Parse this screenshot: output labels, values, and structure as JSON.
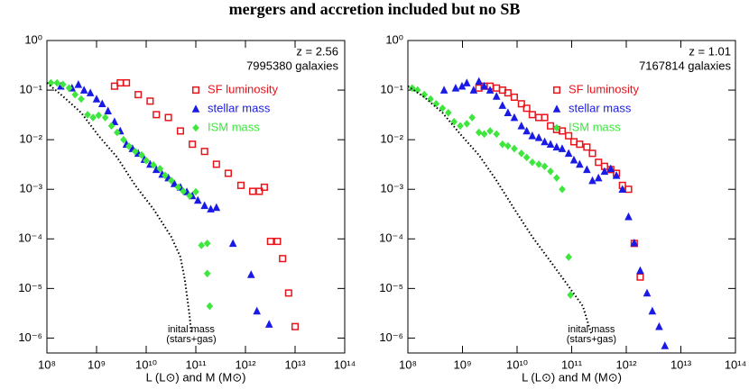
{
  "title": "mergers and accretion included but no SB",
  "chart_data": [
    {
      "type": "scatter",
      "log_x": true,
      "log_y": true,
      "annotations": [
        "z = 2.56",
        "7995380 galaxies"
      ],
      "curve_label": [
        "inital mass",
        "(stars+gas)"
      ],
      "x_label": "L (L⊙) and M (M⊙)",
      "xlim": [
        100000000.0,
        100000000000000.0
      ],
      "ylim": [
        5e-07,
        1
      ],
      "xticks": [
        {
          "value": 100000000.0,
          "label": "10⁸"
        },
        {
          "value": 1000000000.0,
          "label": "10⁹"
        },
        {
          "value": 10000000000.0,
          "label": "10¹⁰"
        },
        {
          "value": 100000000000.0,
          "label": "10¹¹"
        },
        {
          "value": 1000000000000.0,
          "label": "10¹²"
        },
        {
          "value": 10000000000000.0,
          "label": "10¹³"
        },
        {
          "value": 100000000000000.0,
          "label": "10¹⁴"
        }
      ],
      "yticks": [
        {
          "value": 1e-06,
          "label": "10⁻⁶"
        },
        {
          "value": 1e-05,
          "label": "10⁻⁵"
        },
        {
          "value": 0.0001,
          "label": "10⁻⁴"
        },
        {
          "value": 0.001,
          "label": "10⁻³"
        },
        {
          "value": 0.01,
          "label": "10⁻²"
        },
        {
          "value": 0.1,
          "label": "10⁻¹"
        },
        {
          "value": 1,
          "label": "10⁰"
        }
      ],
      "series": [
        {
          "name": "SF luminosity",
          "color": "#e8141b",
          "marker": "square",
          "x": [
            2300000000.0,
            3000000000.0,
            4000000000.0,
            6900000000.0,
            12000000000.0,
            16000000000.0,
            28000000000.0,
            49000000000.0,
            85000000000.0,
            150000000000.0,
            260000000000.0,
            450000000000.0,
            810000000000.0,
            1400000000000.0,
            1900000000000.0,
            2400000000000.0,
            3200000000000.0,
            4400000000000.0,
            5600000000000.0,
            7400000000000.0,
            10000000000000.0
          ],
          "values": [
            0.12,
            0.14,
            0.14,
            0.081,
            0.06,
            0.032,
            0.028,
            0.015,
            0.0081,
            0.0058,
            0.0032,
            0.0021,
            0.0012,
            0.00091,
            0.00091,
            0.0011,
            8.9e-05,
            8.9e-05,
            4e-05,
            8.1e-06,
            1.7e-06
          ]
        },
        {
          "name": "stellar mass",
          "color": "#1a1ae6",
          "marker": "triangle",
          "x": [
            190000000.0,
            320000000.0,
            430000000.0,
            560000000.0,
            750000000.0,
            1000000000.0,
            1300000000.0,
            1700000000.0,
            2300000000.0,
            3000000000.0,
            4000000000.0,
            5300000000.0,
            6900000000.0,
            9200000000.0,
            12000000000.0,
            16000000000.0,
            21000000000.0,
            28000000000.0,
            37000000000.0,
            49000000000.0,
            66000000000.0,
            85000000000.0,
            110000000000.0,
            150000000000.0,
            200000000000.0,
            260000000000.0,
            560000000000.0,
            1300000000000.0,
            1700000000000.0,
            3000000000000.0
          ],
          "values": [
            0.12,
            0.11,
            0.13,
            0.1,
            0.088,
            0.066,
            0.053,
            0.038,
            0.023,
            0.015,
            0.0081,
            0.0066,
            0.0053,
            0.004,
            0.0032,
            0.0025,
            0.002,
            0.0017,
            0.0013,
            0.0011,
            0.00089,
            0.00074,
            0.0006,
            0.00047,
            0.0004,
            0.00043,
            8.1e-05,
            1.9e-05,
            3.5e-06,
            1.9e-06
          ]
        },
        {
          "name": "ISM mass",
          "color": "#3ee63e",
          "marker": "diamond",
          "x": [
            120000000.0,
            160000000.0,
            210000000.0,
            280000000.0,
            370000000.0,
            490000000.0,
            660000000.0,
            850000000.0,
            1100000000.0,
            1500000000.0,
            2000000000.0,
            2600000000.0,
            3500000000.0,
            4500000000.0,
            6000000000.0,
            8100000000.0,
            10000000000.0,
            14000000000.0,
            19000000000.0,
            24000000000.0,
            32000000000.0,
            44000000000.0,
            56000000000.0,
            75000000000.0,
            100000000000.0,
            130000000000.0,
            170000000000.0,
            170000000000.0,
            190000000000.0
          ],
          "values": [
            0.14,
            0.14,
            0.13,
            0.11,
            0.081,
            0.066,
            0.032,
            0.028,
            0.031,
            0.028,
            0.019,
            0.014,
            0.01,
            0.0074,
            0.0058,
            0.0049,
            0.0038,
            0.0031,
            0.0026,
            0.0019,
            0.0015,
            0.0011,
            0.00091,
            0.00074,
            0.00089,
            7.4e-05,
            8.1e-05,
            2e-05,
            4.4e-06
          ]
        },
        {
          "color": "#000000",
          "style": "dotted",
          "x": [
            100000000.0,
            210000000.0,
            490000000.0,
            1100000000.0,
            2600000000.0,
            6000000000.0,
            14000000000.0,
            32000000000.0,
            49000000000.0,
            60000000000.0,
            75000000000.0,
            81000000000.0
          ],
          "values": [
            0.14,
            0.075,
            0.035,
            0.012,
            0.0044,
            0.0012,
            0.0004,
            0.00011,
            4.3e-05,
            1.5e-05,
            2.8e-06,
            1.2e-06
          ]
        }
      ]
    },
    {
      "type": "scatter",
      "log_x": true,
      "log_y": true,
      "annotations": [
        "z = 1.01",
        "7167814 galaxies"
      ],
      "curve_label": [
        "inital mass",
        "(stars+gas)"
      ],
      "x_label": "L (L⊙) and M (M⊙)",
      "xlim": [
        100000000.0,
        100000000000000.0
      ],
      "ylim": [
        5e-07,
        1
      ],
      "xticks": [
        {
          "value": 100000000.0,
          "label": "10⁸"
        },
        {
          "value": 1000000000.0,
          "label": "10⁹"
        },
        {
          "value": 10000000000.0,
          "label": "10¹⁰"
        },
        {
          "value": 100000000000.0,
          "label": "10¹¹"
        },
        {
          "value": 1000000000000.0,
          "label": "10¹²"
        },
        {
          "value": 10000000000000.0,
          "label": "10¹³"
        },
        {
          "value": 100000000000000.0,
          "label": "10¹⁴"
        }
      ],
      "yticks": [
        {
          "value": 1e-06,
          "label": "10⁻⁶"
        },
        {
          "value": 1e-05,
          "label": "10⁻⁵"
        },
        {
          "value": 0.0001,
          "label": "10⁻⁴"
        },
        {
          "value": 0.001,
          "label": "10⁻³"
        },
        {
          "value": 0.01,
          "label": "10⁻²"
        },
        {
          "value": 0.1,
          "label": "10⁻¹"
        },
        {
          "value": 1,
          "label": "10⁰"
        }
      ],
      "series": [
        {
          "name": "SF luminosity",
          "color": "#e8141b",
          "marker": "square",
          "x": [
            2000000000.0,
            2500000000.0,
            3200000000.0,
            4200000000.0,
            5400000000.0,
            6800000000.0,
            8900000000.0,
            12000000000.0,
            15000000000.0,
            19000000000.0,
            25000000000.0,
            32000000000.0,
            41000000000.0,
            53000000000.0,
            67000000000.0,
            88000000000.0,
            110000000000.0,
            140000000000.0,
            190000000000.0,
            240000000000.0,
            310000000000.0,
            400000000000.0,
            520000000000.0,
            660000000000.0,
            850000000000.0,
            1100000000000.0,
            1400000000000.0,
            1800000000000.0
          ],
          "values": [
            0.11,
            0.12,
            0.12,
            0.11,
            0.1,
            0.088,
            0.072,
            0.053,
            0.043,
            0.032,
            0.028,
            0.028,
            0.019,
            0.016,
            0.015,
            0.012,
            0.0091,
            0.0081,
            0.0071,
            0.0053,
            0.0035,
            0.0029,
            0.0025,
            0.0021,
            0.0012,
            0.001,
            8.1e-05,
            1.7e-05
          ]
        },
        {
          "name": "stellar mass",
          "color": "#1a1ae6",
          "marker": "triangle",
          "x": [
            460000000.0,
            750000000.0,
            980000000.0,
            1200000000.0,
            1600000000.0,
            2000000000.0,
            2500000000.0,
            3200000000.0,
            4200000000.0,
            5400000000.0,
            6800000000.0,
            8900000000.0,
            12000000000.0,
            15000000000.0,
            19000000000.0,
            25000000000.0,
            32000000000.0,
            41000000000.0,
            53000000000.0,
            67000000000.0,
            88000000000.0,
            110000000000.0,
            140000000000.0,
            190000000000.0,
            240000000000.0,
            310000000000.0,
            400000000000.0,
            520000000000.0,
            660000000000.0,
            850000000000.0,
            1100000000000.0,
            1400000000000.0,
            1800000000000.0,
            2400000000000.0,
            3000000000000.0,
            4000000000000.0,
            5100000000000.0
          ],
          "values": [
            0.1,
            0.11,
            0.12,
            0.14,
            0.1,
            0.15,
            0.12,
            0.1,
            0.075,
            0.049,
            0.035,
            0.028,
            0.019,
            0.015,
            0.012,
            0.011,
            0.0091,
            0.0081,
            0.0071,
            0.0066,
            0.0053,
            0.0039,
            0.0032,
            0.0025,
            0.0015,
            0.0017,
            0.0023,
            0.0026,
            0.0019,
            0.001,
            0.00028,
            8.3e-05,
            2.3e-05,
            8.1e-06,
            3.5e-06,
            1.7e-06,
            7e-07
          ]
        },
        {
          "name": "ISM mass",
          "color": "#3ee63e",
          "marker": "diamond",
          "x": [
            120000000.0,
            150000000.0,
            200000000.0,
            260000000.0,
            330000000.0,
            430000000.0,
            550000000.0,
            700000000.0,
            910000000.0,
            1200000000.0,
            1500000000.0,
            2000000000.0,
            2500000000.0,
            3200000000.0,
            4200000000.0,
            5400000000.0,
            6800000000.0,
            8900000000.0,
            12000000000.0,
            15000000000.0,
            19000000000.0,
            25000000000.0,
            32000000000.0,
            41000000000.0,
            53000000000.0,
            67000000000.0,
            88000000000.0,
            95000000000.0
          ],
          "values": [
            0.11,
            0.1,
            0.081,
            0.066,
            0.053,
            0.043,
            0.035,
            0.023,
            0.019,
            0.021,
            0.028,
            0.014,
            0.013,
            0.015,
            0.013,
            0.0081,
            0.0075,
            0.0066,
            0.0053,
            0.0044,
            0.0035,
            0.0032,
            0.0029,
            0.0023,
            0.0017,
            0.001,
            4.3e-05,
            7.4e-06
          ]
        },
        {
          "color": "#000000",
          "style": "dotted",
          "x": [
            100000000.0,
            200000000.0,
            430000000.0,
            910000000.0,
            2000000000.0,
            4200000000.0,
            8900000000.0,
            19000000000.0,
            41000000000.0,
            88000000000.0,
            160000000000.0,
            230000000000.0
          ],
          "values": [
            0.12,
            0.072,
            0.035,
            0.013,
            0.0049,
            0.0015,
            0.0004,
            0.00011,
            3.5e-05,
            1.1e-05,
            4.4e-06,
            1.2e-06
          ]
        }
      ]
    }
  ]
}
